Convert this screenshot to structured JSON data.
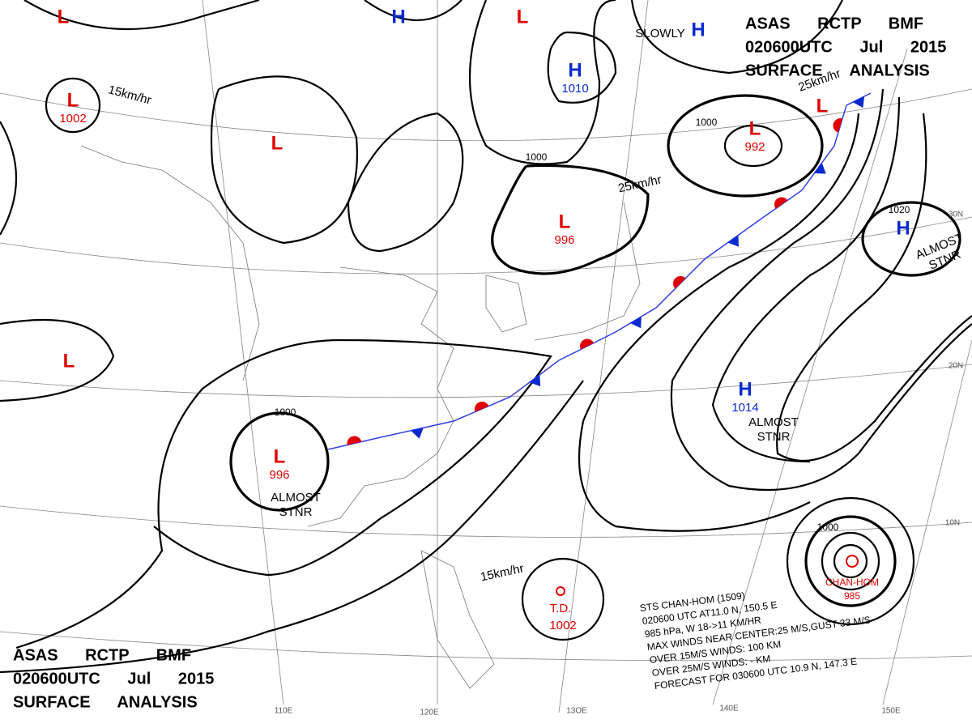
{
  "header": {
    "lines": [
      "ASAS RCTP BMF",
      "020600UTC Jul 2015",
      "SURFACE ANALYSIS"
    ]
  },
  "footer": {
    "lines": [
      "ASAS RCTP BMF",
      "020600UTC Jul 2015",
      "SURFACE ANALYSIS"
    ]
  },
  "systems": [
    {
      "symbol": "L",
      "value": 1002
    },
    {
      "symbol": "L"
    },
    {
      "symbol": "H"
    },
    {
      "symbol": "L"
    },
    {
      "symbol": "H",
      "value": 1010
    },
    {
      "symbol": "H"
    },
    {
      "symbol": "L",
      "value": 992
    },
    {
      "symbol": "L"
    },
    {
      "symbol": "L",
      "value": 996
    },
    {
      "symbol": "H"
    },
    {
      "symbol": "L"
    },
    {
      "symbol": "L"
    },
    {
      "symbol": "L",
      "value": 996
    },
    {
      "symbol": "H",
      "value": 1014
    }
  ],
  "motion_notes": [
    "15km/hr",
    "SLOWLY",
    "25km/hr",
    "25km/hr",
    "15km/hr"
  ],
  "stationary_notes": [
    [
      "ALMOST",
      "STNR"
    ],
    [
      "ALMOST",
      "STNR"
    ],
    [
      "ALMOST",
      "STNR"
    ]
  ],
  "isobar_labels": [
    1000,
    1000,
    1000,
    1020,
    1000
  ],
  "tropical_depression": {
    "label": "T.D.",
    "value": 1002
  },
  "typhoon": {
    "name": "CHAN-HOM",
    "value": 985,
    "info": [
      "STS  CHAN-HOM  (1509)",
      "020600 UTC  AT11.0 N, 150.5 E",
      "985 hPa, W 18->11 KM/HR",
      "MAX WINDS NEAR CENTER:25 M/S,GUST 33 M/S",
      "OVER 15M/S WINDS: 100 KM",
      "OVER 25M/S WINDS: - KM",
      "FORECAST FOR 030600 UTC 10.9 N, 147.3 E"
    ]
  },
  "latitudes": [
    "30N",
    "20N",
    "10N"
  ],
  "longitudes": [
    "110E",
    "120E",
    "13OE",
    "140E",
    "150E"
  ]
}
